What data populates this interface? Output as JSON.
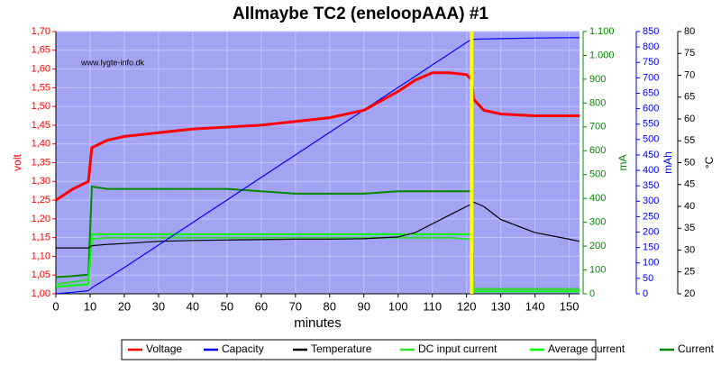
{
  "chart_data": {
    "type": "line",
    "title": "Allmaybe TC2 (eneloopAAA) #1",
    "watermark": "www.lygte-info.dk",
    "xlabel": "minutes",
    "ylabel": "volt",
    "y2label": "mA",
    "y3label": "mAh",
    "y4label": "°C",
    "background": "#a3a3f3",
    "grid": true,
    "vline": {
      "x": 121.5,
      "color": "#ffff00"
    },
    "x": [
      0,
      5,
      9.5,
      10.5,
      15,
      20,
      30,
      40,
      50,
      60,
      70,
      80,
      90,
      100,
      105,
      110,
      115,
      120,
      121.5,
      122,
      125,
      130,
      140,
      150,
      153
    ],
    "xlim": [
      0,
      153
    ],
    "xticks": [
      0,
      10,
      20,
      30,
      40,
      50,
      60,
      70,
      80,
      90,
      100,
      110,
      120,
      130,
      140,
      150
    ],
    "ylim": [
      1.0,
      1.7
    ],
    "yticks": [
      {
        "value": 1.0,
        "label": "1,00"
      },
      {
        "value": 1.05,
        "label": "1,05"
      },
      {
        "value": 1.1,
        "label": "1,10"
      },
      {
        "value": 1.15,
        "label": "1,15"
      },
      {
        "value": 1.2,
        "label": "1,20"
      },
      {
        "value": 1.25,
        "label": "1,25"
      },
      {
        "value": 1.3,
        "label": "1,30"
      },
      {
        "value": 1.35,
        "label": "1,35"
      },
      {
        "value": 1.4,
        "label": "1,40"
      },
      {
        "value": 1.45,
        "label": "1,45"
      },
      {
        "value": 1.5,
        "label": "1,50"
      },
      {
        "value": 1.55,
        "label": "1,55"
      },
      {
        "value": 1.6,
        "label": "1,60"
      },
      {
        "value": 1.65,
        "label": "1,65"
      },
      {
        "value": 1.7,
        "label": "1,70"
      }
    ],
    "y2lim": [
      0,
      1100
    ],
    "y2ticks": [
      0,
      100,
      200,
      300,
      400,
      500,
      600,
      700,
      800,
      900,
      {
        "value": 1000,
        "label": "1.000"
      },
      {
        "value": 1100,
        "label": "1.100"
      }
    ],
    "y3lim": [
      0,
      850
    ],
    "y3ticks": [
      0,
      50,
      100,
      150,
      200,
      250,
      300,
      350,
      400,
      450,
      500,
      550,
      600,
      650,
      700,
      750,
      800,
      850
    ],
    "y4lim": [
      20,
      80
    ],
    "y4ticks": [
      20,
      25,
      30,
      35,
      40,
      45,
      50,
      55,
      60,
      65,
      70,
      75,
      80
    ],
    "series": [
      {
        "name": "Voltage",
        "color": "#ff0000",
        "axis": "y",
        "values": [
          1.25,
          1.28,
          1.3,
          1.39,
          1.41,
          1.42,
          1.43,
          1.44,
          1.445,
          1.45,
          1.46,
          1.47,
          1.49,
          1.54,
          1.57,
          1.59,
          1.59,
          1.585,
          1.57,
          1.52,
          1.49,
          1.48,
          1.475,
          1.475,
          1.475
        ]
      },
      {
        "name": "Capacity",
        "color": "#0000ff",
        "axis": "y3",
        "values": [
          0,
          5,
          10,
          20,
          50,
          85,
          158,
          231,
          304,
          377,
          450,
          523,
          596,
          669,
          705,
          742,
          778,
          815,
          825,
          825,
          826,
          827,
          829,
          830,
          830
        ]
      },
      {
        "name": "Temperature",
        "color": "#000000",
        "axis": "y4",
        "values": [
          30.5,
          30.5,
          30.5,
          31,
          31.3,
          31.5,
          32,
          32.2,
          32.3,
          32.4,
          32.5,
          32.5,
          32.6,
          33,
          34,
          36,
          38,
          40,
          40.5,
          41,
          40,
          37,
          34,
          32.5,
          32
        ]
      },
      {
        "name": "DC input current",
        "color": "#33dd33",
        "axis": "y2",
        "values": [
          40,
          50,
          60,
          230,
          235,
          235,
          235,
          235,
          235,
          235,
          235,
          235,
          235,
          235,
          235,
          235,
          235,
          230,
          230,
          20,
          20,
          20,
          20,
          20,
          20
        ]
      },
      {
        "name": "Average current",
        "color": "#00ff00",
        "axis": "y2",
        "values": [
          30,
          35,
          40,
          250,
          250,
          250,
          250,
          250,
          250,
          250,
          250,
          250,
          250,
          250,
          250,
          250,
          250,
          250,
          250,
          10,
          10,
          10,
          10,
          10,
          10
        ]
      },
      {
        "name": "Current",
        "color": "#008800",
        "axis": "y2",
        "values": [
          70,
          75,
          80,
          450,
          440,
          440,
          440,
          440,
          440,
          430,
          420,
          420,
          420,
          430,
          430,
          430,
          430,
          430,
          430,
          20,
          20,
          20,
          20,
          20,
          20
        ]
      }
    ]
  }
}
